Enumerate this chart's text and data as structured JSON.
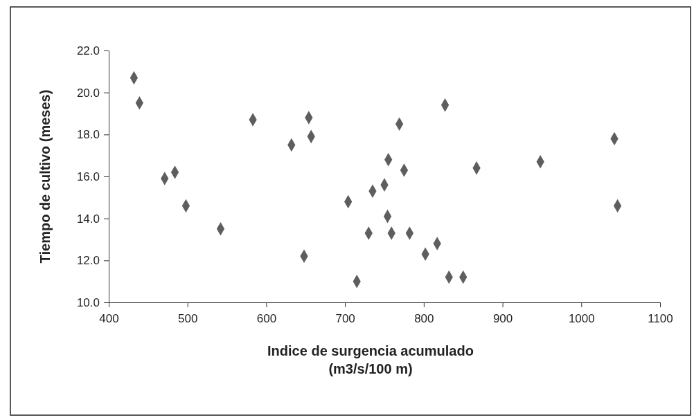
{
  "chart_data": {
    "type": "scatter",
    "xlabel": "Indice de surgencia acumulado\n(m3/s/100 m)",
    "ylabel": "Tiempo de cultivo (meses)",
    "marker": "diamond",
    "grid": false,
    "xlim": [
      400,
      1100
    ],
    "xticks": [
      400,
      500,
      600,
      700,
      800,
      900,
      1000,
      1100
    ],
    "ylim": [
      10,
      22
    ],
    "yticks": [
      {
        "value": 10,
        "label": "10.0"
      },
      {
        "value": 12,
        "label": "12.0"
      },
      {
        "value": 14,
        "label": "14.0"
      },
      {
        "value": 16,
        "label": "16.0"
      },
      {
        "value": 18,
        "label": "18.0"
      },
      {
        "value": 20,
        "label": "20.0"
      },
      {
        "value": 22,
        "label": "22.0"
      }
    ],
    "series": [
      {
        "color": "#5e5e5e",
        "x": [
          432,
          439,
          471,
          484,
          498,
          542,
          583,
          632,
          654,
          657,
          648,
          704,
          715,
          730,
          735,
          750,
          754,
          755,
          759,
          769,
          775,
          782,
          802,
          817,
          827,
          832,
          850,
          867,
          948,
          1042,
          1046
        ],
        "values": [
          20.7,
          19.5,
          15.9,
          16.2,
          14.6,
          13.5,
          18.7,
          17.5,
          18.8,
          17.9,
          12.2,
          14.8,
          11.0,
          13.3,
          15.3,
          15.6,
          14.1,
          16.8,
          13.3,
          18.5,
          16.3,
          13.3,
          12.3,
          12.8,
          19.4,
          11.2,
          11.2,
          16.4,
          16.7,
          17.8,
          14.6
        ]
      }
    ]
  }
}
